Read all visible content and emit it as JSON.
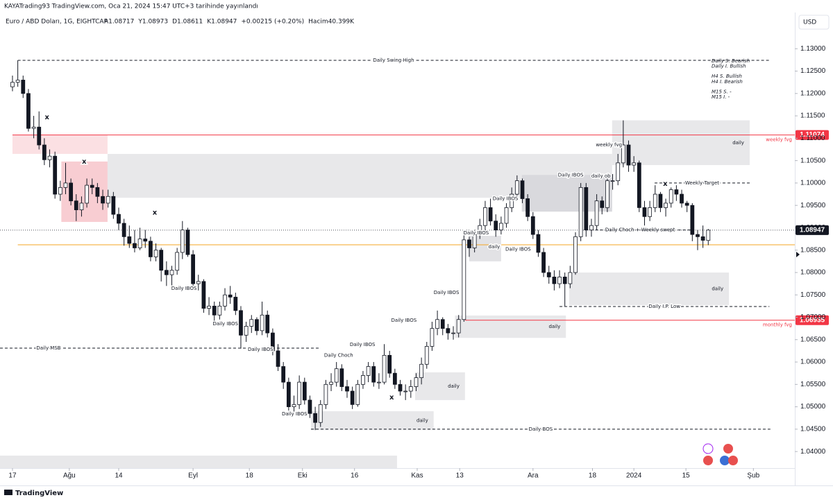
{
  "header": {
    "publisher": "KAYATrading93 TradingView.com, Oca 21, 2024 15:47 UTC+3 tarihinde yayınlandı",
    "symbol": "Euro / ABD Doları, 1G, EIGHTCAP",
    "quote": [
      "A1.08717",
      "Y1.08973",
      "D1.08611",
      "K1.08947",
      "+0.00215 (+0.20%)",
      "Hacim40.399K"
    ],
    "currency": "USD",
    "brand": "TradingView"
  },
  "notes": [
    "Daily S. Bearish",
    "Daily I. Bullish",
    "H4 S. Bullish",
    "H4 I. Bearish",
    "M15 S. -",
    "M15 I. -"
  ],
  "chart_data": {
    "type": "candlestick",
    "up_color": "#ffffff",
    "down_color": "#131722",
    "wick_color": "#131722",
    "xlim": [
      -2.35,
      147.3
    ],
    "ylim": [
      1.0363,
      1.1381
    ],
    "xticks": [
      {
        "value": 0,
        "label": "17"
      },
      {
        "value": 10.7,
        "label": "Ağu"
      },
      {
        "value": 20,
        "label": "14"
      },
      {
        "value": 34,
        "label": "Eyl"
      },
      {
        "value": 44.6,
        "label": "18"
      },
      {
        "value": 54.6,
        "label": "Eki"
      },
      {
        "value": 64.4,
        "label": "16"
      },
      {
        "value": 76.2,
        "label": "Kas"
      },
      {
        "value": 84.2,
        "label": "13"
      },
      {
        "value": 98,
        "label": "Ara"
      },
      {
        "value": 109.2,
        "label": "18"
      },
      {
        "value": 117,
        "label": "2024"
      },
      {
        "value": 126.8,
        "label": "15"
      },
      {
        "value": 139.5,
        "label": "Şub"
      }
    ],
    "yticks": [
      {
        "value": 1.04,
        "label": "1.04000"
      },
      {
        "value": 1.045,
        "label": "1.04500"
      },
      {
        "value": 1.05,
        "label": "1.05000"
      },
      {
        "value": 1.055,
        "label": "1.05500"
      },
      {
        "value": 1.06,
        "label": "1.06000"
      },
      {
        "value": 1.065,
        "label": "1.06500"
      },
      {
        "value": 1.07,
        "label": "1.07000"
      },
      {
        "value": 1.075,
        "label": "1.07500"
      },
      {
        "value": 1.08,
        "label": "1.08000"
      },
      {
        "value": 1.085,
        "label": "1.08500"
      },
      {
        "value": 1.09,
        "label": "1.09000"
      },
      {
        "value": 1.095,
        "label": "1.09500"
      },
      {
        "value": 1.1,
        "label": "1.10000"
      },
      {
        "value": 1.105,
        "label": "1.10500"
      },
      {
        "value": 1.11,
        "label": "1.11000"
      },
      {
        "value": 1.115,
        "label": "1.11500"
      },
      {
        "value": 1.12,
        "label": "1.12000"
      },
      {
        "value": 1.125,
        "label": "1.12500"
      },
      {
        "value": 1.13,
        "label": "1.13000"
      }
    ],
    "candles": [
      [
        1.1215,
        1.124,
        1.1205,
        1.1225
      ],
      [
        1.1225,
        1.1274,
        1.1215,
        1.123
      ],
      [
        1.123,
        1.124,
        1.119,
        1.12
      ],
      [
        1.12,
        1.121,
        1.1115,
        1.1122
      ],
      [
        1.1122,
        1.115,
        1.11,
        1.1125
      ],
      [
        1.1125,
        1.116,
        1.1075,
        1.1085
      ],
      [
        1.1085,
        1.11,
        1.104,
        1.1052
      ],
      [
        1.1052,
        1.1075,
        1.1035,
        1.106
      ],
      [
        1.106,
        1.107,
        1.0965,
        1.0975
      ],
      [
        1.0975,
        1.1005,
        1.096,
        1.099
      ],
      [
        1.099,
        1.1045,
        1.0975,
        1.1
      ],
      [
        1.1,
        1.101,
        1.095,
        1.096
      ],
      [
        1.096,
        1.0975,
        1.0915,
        1.094
      ],
      [
        1.094,
        1.097,
        1.0925,
        1.0955
      ],
      [
        1.0955,
        1.101,
        1.0945,
        1.0995
      ],
      [
        1.0995,
        1.101,
        1.0975,
        1.099
      ],
      [
        1.099,
        1.1,
        1.0955,
        1.097
      ],
      [
        1.097,
        1.0985,
        1.094,
        1.0955
      ],
      [
        1.0955,
        1.0985,
        1.0945,
        1.097
      ],
      [
        1.097,
        1.098,
        1.092,
        1.093
      ],
      [
        1.093,
        1.0945,
        1.0895,
        1.091
      ],
      [
        1.091,
        1.092,
        1.086,
        1.088
      ],
      [
        1.088,
        1.0905,
        1.0855,
        1.0865
      ],
      [
        1.0865,
        1.0895,
        1.0845,
        1.0855
      ],
      [
        1.0855,
        1.09,
        1.085,
        1.0875
      ],
      [
        1.0875,
        1.0895,
        1.0855,
        1.087
      ],
      [
        1.087,
        1.088,
        1.0825,
        1.0835
      ],
      [
        1.0835,
        1.0865,
        1.0825,
        1.085
      ],
      [
        1.085,
        1.0855,
        1.078,
        1.0805
      ],
      [
        1.0805,
        1.0825,
        1.077,
        1.0795
      ],
      [
        1.0795,
        1.0815,
        1.0765,
        1.0805
      ],
      [
        1.0805,
        1.0855,
        1.0795,
        1.0845
      ],
      [
        1.0845,
        1.0915,
        1.083,
        1.0895
      ],
      [
        1.0895,
        1.09,
        1.0835,
        1.084
      ],
      [
        1.084,
        1.085,
        1.0765,
        1.0775
      ],
      [
        1.0775,
        1.0795,
        1.076,
        1.078
      ],
      [
        1.078,
        1.0785,
        1.071,
        1.072
      ],
      [
        1.072,
        1.0745,
        1.0705,
        1.0725
      ],
      [
        1.0725,
        1.0735,
        1.069,
        1.0705
      ],
      [
        1.0705,
        1.0735,
        1.0695,
        1.0725
      ],
      [
        1.0725,
        1.0765,
        1.0715,
        1.075
      ],
      [
        1.075,
        1.077,
        1.073,
        1.0745
      ],
      [
        1.0745,
        1.0755,
        1.0705,
        1.0715
      ],
      [
        1.0715,
        1.0725,
        1.063,
        1.066
      ],
      [
        1.066,
        1.069,
        1.0645,
        1.068
      ],
      [
        1.068,
        1.0705,
        1.0665,
        1.0695
      ],
      [
        1.0695,
        1.07,
        1.066,
        1.067
      ],
      [
        1.067,
        1.0735,
        1.066,
        1.0705
      ],
      [
        1.0705,
        1.0715,
        1.0655,
        1.0665
      ],
      [
        1.0665,
        1.0675,
        1.0615,
        1.0625
      ],
      [
        1.0625,
        1.064,
        1.058,
        1.059
      ],
      [
        1.059,
        1.06,
        1.054,
        1.0555
      ],
      [
        1.0555,
        1.0565,
        1.049,
        1.05
      ],
      [
        1.05,
        1.0525,
        1.0485,
        1.0505
      ],
      [
        1.0505,
        1.057,
        1.0495,
        1.0555
      ],
      [
        1.0555,
        1.0565,
        1.0505,
        1.0515
      ],
      [
        1.0515,
        1.0525,
        1.0475,
        1.0485
      ],
      [
        1.0485,
        1.05,
        1.0448,
        1.0465
      ],
      [
        1.0465,
        1.0515,
        1.0455,
        1.0505
      ],
      [
        1.0505,
        1.056,
        1.0495,
        1.055
      ],
      [
        1.055,
        1.0575,
        1.0535,
        1.0555
      ],
      [
        1.0555,
        1.06,
        1.0545,
        1.0585
      ],
      [
        1.0585,
        1.0595,
        1.0535,
        1.0545
      ],
      [
        1.0545,
        1.056,
        1.052,
        1.0535
      ],
      [
        1.0535,
        1.0545,
        1.0495,
        1.0505
      ],
      [
        1.0505,
        1.056,
        1.05,
        1.055
      ],
      [
        1.055,
        1.058,
        1.054,
        1.057
      ],
      [
        1.057,
        1.06,
        1.0555,
        1.059
      ],
      [
        1.059,
        1.06,
        1.0545,
        1.0555
      ],
      [
        1.0555,
        1.0575,
        1.054,
        1.0555
      ],
      [
        1.0555,
        1.064,
        1.055,
        1.0615
      ],
      [
        1.0615,
        1.0625,
        1.0565,
        1.0575
      ],
      [
        1.0575,
        1.0585,
        1.054,
        1.055
      ],
      [
        1.055,
        1.056,
        1.0525,
        1.0535
      ],
      [
        1.0535,
        1.055,
        1.0515,
        1.0535
      ],
      [
        1.0535,
        1.056,
        1.052,
        1.0545
      ],
      [
        1.0545,
        1.0575,
        1.0535,
        1.0565
      ],
      [
        1.0565,
        1.061,
        1.055,
        1.0595
      ],
      [
        1.0595,
        1.0645,
        1.0585,
        1.0635
      ],
      [
        1.0635,
        1.069,
        1.0625,
        1.0675
      ],
      [
        1.0675,
        1.0715,
        1.066,
        1.0695
      ],
      [
        1.0695,
        1.07,
        1.066,
        1.0675
      ],
      [
        1.0675,
        1.0685,
        1.065,
        1.0665
      ],
      [
        1.0665,
        1.068,
        1.065,
        1.0665
      ],
      [
        1.0665,
        1.0705,
        1.0655,
        1.0695
      ],
      [
        1.0695,
        1.0885,
        1.069,
        1.0873
      ],
      [
        1.0873,
        1.088,
        1.0835,
        1.0855
      ],
      [
        1.0855,
        1.0895,
        1.0845,
        1.0885
      ],
      [
        1.0885,
        1.092,
        1.0875,
        1.0905
      ],
      [
        1.0905,
        1.096,
        1.0895,
        1.0945
      ],
      [
        1.0945,
        1.0965,
        1.0905,
        1.0915
      ],
      [
        1.0915,
        1.093,
        1.088,
        1.0895
      ],
      [
        1.0895,
        1.0925,
        1.0885,
        1.091
      ],
      [
        1.091,
        1.0955,
        1.09,
        1.0945
      ],
      [
        1.0945,
        1.099,
        1.0935,
        1.0975
      ],
      [
        1.0975,
        1.1017,
        1.0965,
        1.1005
      ],
      [
        1.1005,
        1.101,
        1.0955,
        1.0965
      ],
      [
        1.0965,
        1.0975,
        1.0915,
        1.0925
      ],
      [
        1.0925,
        1.0935,
        1.0875,
        1.0885
      ],
      [
        1.0885,
        1.0895,
        1.0835,
        1.0845
      ],
      [
        1.0845,
        1.0855,
        1.079,
        1.08
      ],
      [
        1.08,
        1.0815,
        1.0775,
        1.079
      ],
      [
        1.079,
        1.0805,
        1.076,
        1.0775
      ],
      [
        1.0775,
        1.0805,
        1.0765,
        1.079
      ],
      [
        1.079,
        1.08,
        1.0725,
        1.0775
      ],
      [
        1.0775,
        1.0815,
        1.0765,
        1.08
      ],
      [
        1.08,
        1.089,
        1.0795,
        1.088
      ],
      [
        1.088,
        1.1,
        1.087,
        1.099
      ],
      [
        1.099,
        1.1,
        1.088,
        1.0895
      ],
      [
        1.0895,
        1.092,
        1.088,
        1.0905
      ],
      [
        1.0905,
        1.0975,
        1.0895,
        1.096
      ],
      [
        1.096,
        1.097,
        1.093,
        1.0945
      ],
      [
        1.0945,
        1.101,
        1.0935,
        1.1005
      ],
      [
        1.1005,
        1.102,
        1.0985,
        1.1005
      ],
      [
        1.1005,
        1.1065,
        1.0995,
        1.1045
      ],
      [
        1.1045,
        1.114,
        1.1035,
        1.1085
      ],
      [
        1.1085,
        1.1095,
        1.1025,
        1.104
      ],
      [
        1.104,
        1.106,
        1.1025,
        1.1045
      ],
      [
        1.1045,
        1.105,
        1.0935,
        1.0945
      ],
      [
        1.0945,
        1.096,
        1.0905,
        1.0925
      ],
      [
        1.0925,
        1.096,
        1.0915,
        1.0945
      ],
      [
        1.0945,
        1.0995,
        1.0935,
        1.0975
      ],
      [
        1.0975,
        1.098,
        1.0935,
        1.0945
      ],
      [
        1.0945,
        1.0965,
        1.0925,
        1.0955
      ],
      [
        1.0955,
        1.099,
        1.0945,
        1.0985
      ],
      [
        1.0985,
        1.0995,
        1.096,
        1.0975
      ],
      [
        1.0975,
        1.0985,
        1.0945,
        1.0955
      ],
      [
        1.0955,
        1.096,
        1.0935,
        1.095
      ],
      [
        1.095,
        1.0955,
        1.087,
        1.0885
      ],
      [
        1.0885,
        1.0895,
        1.085,
        1.088
      ],
      [
        1.088,
        1.0905,
        1.0855,
        1.0872
      ],
      [
        1.08717,
        1.08973,
        1.08611,
        1.08947
      ]
    ],
    "last_price_color": "#131722",
    "zones": [
      {
        "x": [
          0,
          17.9
        ],
        "y": [
          1.1065,
          1.11074
        ],
        "color": "#fbe0e3"
      },
      {
        "x": [
          9.2,
          17.9
        ],
        "y": [
          1.0913,
          1.1048
        ],
        "color": "#f8cdd2"
      },
      {
        "x": [
          17.9,
          112.9
        ],
        "y": [
          1.0967,
          1.1065
        ],
        "color": "#e8e8ea"
      },
      {
        "x": [
          112.9,
          138.8
        ],
        "y": [
          1.104,
          1.114
        ],
        "color": "#e8e8ea",
        "label": "daily"
      },
      {
        "x": [
          95.9,
          112.9
        ],
        "y": [
          1.0936,
          1.1018
        ],
        "color": "#d9d9dd"
      },
      {
        "x": [
          86,
          92
        ],
        "y": [
          1.0825,
          1.0882
        ],
        "color": "#e2e2e5"
      },
      {
        "x": [
          104.8,
          134.9
        ],
        "y": [
          1.0727,
          1.08
        ],
        "color": "#e8e8ea",
        "label": "daily"
      },
      {
        "x": [
          83.3,
          104.2
        ],
        "y": [
          1.0654,
          1.0704
        ],
        "color": "#e8e8ea",
        "label": "daily"
      },
      {
        "x": [
          75.8,
          85.2
        ],
        "y": [
          1.0515,
          1.0577
        ],
        "color": "#e8e8ea",
        "label": "daily"
      },
      {
        "x": [
          56.2,
          79.3
        ],
        "y": [
          1.0448,
          1.049
        ],
        "color": "#e8e8ea",
        "label": "daily"
      },
      {
        "x": [
          -2.35,
          72.4
        ],
        "y": [
          1.0363,
          1.0391
        ],
        "color": "#e8e8ea"
      }
    ],
    "lines": [
      {
        "y": 1.1274,
        "x": [
          1,
          142.5
        ],
        "style": "dashed",
        "color": "#131722",
        "label": "Daily Swing High",
        "label_pos": "middle"
      },
      {
        "y": 1.0631,
        "x": [
          -2.35,
          57.8
        ],
        "style": "dashed",
        "color": "#131722",
        "label": "Daily MSB",
        "label_pos": "start"
      },
      {
        "y": 1.045,
        "x": [
          56.2,
          142.7
        ],
        "style": "dashed",
        "color": "#131722",
        "label": "Daily BOS",
        "label_pos": "middle"
      },
      {
        "y": 1.0724,
        "x": [
          103,
          142.5
        ],
        "style": "dashed",
        "color": "#131722",
        "label": "Daily I.P. Low",
        "label_pos": "middle"
      },
      {
        "y": 1.0895,
        "x": [
          107.9,
          128.4
        ],
        "style": "dashed",
        "color": "#131722",
        "label": "Daily Choch + Weekly swept",
        "label_pos": "middle"
      },
      {
        "y": 1.1,
        "x": [
          120.9,
          138.8
        ],
        "style": "dashed",
        "color": "#131722",
        "label": "Weekly Target",
        "label_pos": "middle"
      },
      {
        "y": 1.0862,
        "x": [
          1,
          147.3
        ],
        "style": "solid",
        "color": "#f5a623"
      },
      {
        "y": 1.11074,
        "x": [
          0,
          147.3
        ],
        "style": "solid",
        "color": "#f23645",
        "label": "weekly fvg",
        "label_pos": "end",
        "tag": true
      },
      {
        "y": 1.06935,
        "x": [
          85.2,
          147.3
        ],
        "style": "solid",
        "color": "#f23645",
        "label": "monthly fvg",
        "label_pos": "end",
        "tag": true
      }
    ],
    "annotations": [
      {
        "text": "Daily IBOS",
        "x": 32.3,
        "y": 1.0764
      },
      {
        "text": "Daily IBOS",
        "x": 40.1,
        "y": 1.0685
      },
      {
        "text": "Daily IBOS",
        "x": 46.7,
        "y": 1.0628
      },
      {
        "text": "Daily IBOS",
        "x": 53.1,
        "y": 1.0484
      },
      {
        "text": "Daily IBOS",
        "x": 65.9,
        "y": 1.0639
      },
      {
        "text": "Daily IBOS",
        "x": 73.7,
        "y": 1.0693
      },
      {
        "text": "Daily IBOS",
        "x": 81.7,
        "y": 1.0755
      },
      {
        "text": "Daily IBOS",
        "x": 92.8,
        "y": 1.0965
      },
      {
        "text": "Daily IBOS",
        "x": 87.3,
        "y": 1.0888
      },
      {
        "text": "Daily IBOS",
        "x": 95.2,
        "y": 1.0852
      },
      {
        "text": "Daily IBOS",
        "x": 105.1,
        "y": 1.1018
      },
      {
        "text": "daily ob",
        "x": 110.8,
        "y": 1.1015
      },
      {
        "text": "Daily Choch",
        "x": 61.4,
        "y": 1.0615
      },
      {
        "text": "daily",
        "x": 90.7,
        "y": 1.0857
      },
      {
        "text": "weekly fvg",
        "x": 112.3,
        "y": 1.1085
      },
      {
        "text": "x",
        "x": 6.5,
        "y": 1.1147
      },
      {
        "text": "x",
        "x": 13.5,
        "y": 1.1048
      },
      {
        "text": "x",
        "x": 26.8,
        "y": 1.0934
      },
      {
        "text": "x",
        "x": 71.4,
        "y": 1.0521
      },
      {
        "text": "x",
        "x": 122.9,
        "y": 1.0998
      }
    ]
  }
}
